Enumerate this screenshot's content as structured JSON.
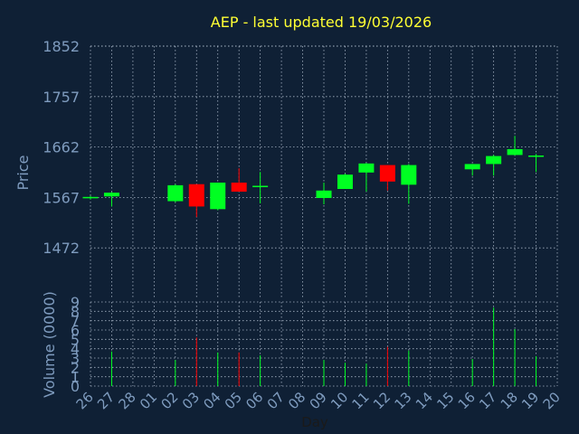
{
  "chart_data": {
    "type": "candlestick",
    "title": "AEP - last updated 19/03/2026",
    "price_axis": {
      "label": "Price",
      "ticks": [
        1472,
        1567,
        1662,
        1757,
        1852
      ],
      "ylim": [
        1377,
        1852
      ]
    },
    "volume_axis": {
      "label": "Volume (0000)",
      "ticks": [
        0,
        1,
        2,
        3,
        4,
        5,
        6,
        7,
        8,
        9
      ],
      "ylim": [
        0,
        9
      ]
    },
    "x_axis": {
      "label": "Day",
      "ticks": [
        "26",
        "27",
        "28",
        "01",
        "02",
        "03",
        "04",
        "05",
        "06",
        "07",
        "08",
        "09",
        "10",
        "11",
        "12",
        "13",
        "14",
        "15",
        "16",
        "17",
        "18",
        "19",
        "20"
      ]
    },
    "grid": true,
    "colors": {
      "background": "#0f2035",
      "title": "#ffff33",
      "label": "#7f9cbf",
      "up": "#00ff22",
      "down": "#ff0000",
      "grid": "#c8d4e4"
    },
    "candles": [
      {
        "day": "26",
        "open": 1566,
        "high": 1570,
        "low": 1563,
        "close": 1568,
        "volume": 0
      },
      {
        "day": "27",
        "open": 1569,
        "high": 1577,
        "low": 1550,
        "close": 1576,
        "volume": 3.7
      },
      {
        "day": "02",
        "open": 1560,
        "high": 1592,
        "low": 1558,
        "close": 1590,
        "volume": 2.8
      },
      {
        "day": "03",
        "open": 1592,
        "high": 1592,
        "low": 1530,
        "close": 1550,
        "volume": 5.2
      },
      {
        "day": "04",
        "open": 1545,
        "high": 1595,
        "low": 1543,
        "close": 1595,
        "volume": 3.6
      },
      {
        "day": "05",
        "open": 1595,
        "high": 1622,
        "low": 1578,
        "close": 1578,
        "volume": 3.6
      },
      {
        "day": "06",
        "open": 1587,
        "high": 1615,
        "low": 1556,
        "close": 1589,
        "volume": 3.3
      },
      {
        "day": "09",
        "open": 1566,
        "high": 1595,
        "low": 1554,
        "close": 1580,
        "volume": 2.8
      },
      {
        "day": "10",
        "open": 1583,
        "high": 1612,
        "low": 1583,
        "close": 1610,
        "volume": 2.5
      },
      {
        "day": "11",
        "open": 1614,
        "high": 1632,
        "low": 1578,
        "close": 1631,
        "volume": 2.4
      },
      {
        "day": "12",
        "open": 1628,
        "high": 1628,
        "low": 1580,
        "close": 1597,
        "volume": 4.2
      },
      {
        "day": "13",
        "open": 1591,
        "high": 1630,
        "low": 1555,
        "close": 1628,
        "volume": 3.8
      },
      {
        "day": "16",
        "open": 1620,
        "high": 1630,
        "low": 1608,
        "close": 1630,
        "volume": 2.9
      },
      {
        "day": "17",
        "open": 1630,
        "high": 1647,
        "low": 1608,
        "close": 1645,
        "volume": 8.4
      },
      {
        "day": "18",
        "open": 1647,
        "high": 1683,
        "low": 1646,
        "close": 1658,
        "volume": 6.1
      },
      {
        "day": "19",
        "open": 1646,
        "high": 1649,
        "low": 1615,
        "close": 1646,
        "volume": 3.2
      }
    ]
  }
}
